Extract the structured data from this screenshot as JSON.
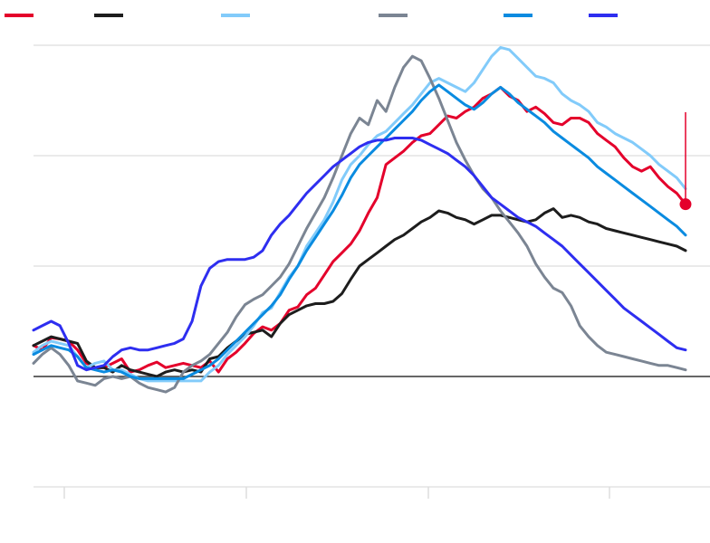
{
  "chart_data": {
    "type": "line",
    "title": "",
    "xlabel": "",
    "ylabel": "",
    "x": [
      0,
      1,
      2,
      3,
      4,
      5,
      6,
      7,
      8,
      9,
      10,
      11,
      12,
      13,
      14,
      15,
      16,
      17,
      18,
      19,
      20,
      21,
      22,
      23,
      24,
      25,
      26,
      27,
      28,
      29,
      30,
      31,
      32,
      33,
      34,
      35,
      36,
      37,
      38,
      39,
      40,
      41,
      42,
      43,
      44,
      45,
      46,
      47,
      48,
      49,
      50,
      51,
      52,
      53,
      54,
      55,
      56,
      57,
      58,
      59,
      60,
      61,
      62,
      63,
      64,
      65,
      66,
      67,
      68,
      69,
      70,
      71,
      72,
      73,
      74
    ],
    "xlim": [
      0,
      74
    ],
    "ylim": [
      -1,
      3
    ],
    "grid": true,
    "legend_position": "top-left",
    "marker_point": {
      "series": 0,
      "index": 74
    },
    "series": [
      {
        "color": "#e4002b",
        "values": [
          0.28,
          0.24,
          0.35,
          0.34,
          0.32,
          0.24,
          0.12,
          0.08,
          0.08,
          0.12,
          0.16,
          0.04,
          0.06,
          0.1,
          0.13,
          0.08,
          0.1,
          0.12,
          0.1,
          0.08,
          0.14,
          0.04,
          0.16,
          0.22,
          0.3,
          0.39,
          0.45,
          0.42,
          0.48,
          0.6,
          0.63,
          0.74,
          0.8,
          0.92,
          1.04,
          1.12,
          1.2,
          1.32,
          1.48,
          1.62,
          1.92,
          1.98,
          2.04,
          2.12,
          2.18,
          2.2,
          2.28,
          2.36,
          2.34,
          2.4,
          2.44,
          2.52,
          2.56,
          2.62,
          2.54,
          2.5,
          2.4,
          2.44,
          2.38,
          2.3,
          2.28,
          2.34,
          2.34,
          2.3,
          2.2,
          2.14,
          2.08,
          1.98,
          1.9,
          1.86,
          1.9,
          1.8,
          1.72,
          1.66,
          1.56
        ]
      },
      {
        "color": "#1d1d1d",
        "values": [
          0.28,
          0.32,
          0.36,
          0.34,
          0.32,
          0.3,
          0.14,
          0.08,
          0.08,
          0.04,
          0.1,
          0.06,
          0.04,
          0.02,
          0.0,
          0.04,
          0.06,
          0.04,
          0.06,
          0.04,
          0.16,
          0.18,
          0.26,
          0.32,
          0.38,
          0.4,
          0.42,
          0.36,
          0.48,
          0.56,
          0.6,
          0.64,
          0.66,
          0.66,
          0.68,
          0.75,
          0.88,
          1.0,
          1.06,
          1.12,
          1.18,
          1.24,
          1.28,
          1.34,
          1.4,
          1.44,
          1.5,
          1.48,
          1.44,
          1.42,
          1.38,
          1.42,
          1.46,
          1.46,
          1.44,
          1.42,
          1.4,
          1.42,
          1.48,
          1.52,
          1.44,
          1.46,
          1.44,
          1.4,
          1.38,
          1.34,
          1.32,
          1.3,
          1.28,
          1.26,
          1.24,
          1.22,
          1.2,
          1.18,
          1.14
        ]
      },
      {
        "color": "#82cbfa",
        "values": [
          0.22,
          0.28,
          0.32,
          0.3,
          0.28,
          0.18,
          0.08,
          0.12,
          0.14,
          0.06,
          0.06,
          0.02,
          -0.02,
          -0.04,
          -0.04,
          -0.04,
          -0.04,
          -0.04,
          -0.04,
          -0.04,
          0.04,
          0.1,
          0.2,
          0.28,
          0.36,
          0.46,
          0.58,
          0.62,
          0.76,
          0.9,
          1.0,
          1.18,
          1.3,
          1.42,
          1.58,
          1.78,
          1.92,
          2.0,
          2.1,
          2.18,
          2.22,
          2.3,
          2.38,
          2.46,
          2.56,
          2.66,
          2.7,
          2.66,
          2.62,
          2.58,
          2.66,
          2.78,
          2.9,
          2.98,
          2.96,
          2.88,
          2.8,
          2.72,
          2.7,
          2.66,
          2.56,
          2.5,
          2.46,
          2.4,
          2.3,
          2.26,
          2.2,
          2.16,
          2.12,
          2.06,
          2.0,
          1.92,
          1.86,
          1.8,
          1.7
        ]
      },
      {
        "color": "#7b8593",
        "values": [
          0.12,
          0.2,
          0.26,
          0.2,
          0.1,
          -0.04,
          -0.06,
          -0.08,
          -0.02,
          0.0,
          -0.02,
          0.0,
          -0.06,
          -0.1,
          -0.12,
          -0.14,
          -0.1,
          0.04,
          0.1,
          0.14,
          0.2,
          0.3,
          0.4,
          0.54,
          0.65,
          0.7,
          0.74,
          0.82,
          0.9,
          1.02,
          1.18,
          1.34,
          1.48,
          1.62,
          1.8,
          2.0,
          2.2,
          2.34,
          2.28,
          2.5,
          2.4,
          2.62,
          2.8,
          2.9,
          2.86,
          2.7,
          2.52,
          2.32,
          2.12,
          1.96,
          1.82,
          1.7,
          1.62,
          1.5,
          1.4,
          1.3,
          1.18,
          1.02,
          0.9,
          0.8,
          0.76,
          0.64,
          0.46,
          0.36,
          0.28,
          0.22,
          0.2,
          0.18,
          0.16,
          0.14,
          0.12,
          0.1,
          0.1,
          0.08,
          0.06
        ]
      },
      {
        "color": "#0a8be0",
        "values": [
          0.2,
          0.24,
          0.28,
          0.26,
          0.24,
          0.18,
          0.08,
          0.06,
          0.04,
          0.06,
          0.04,
          0.0,
          -0.02,
          -0.02,
          -0.02,
          -0.02,
          -0.02,
          -0.02,
          0.02,
          0.06,
          0.1,
          0.16,
          0.24,
          0.32,
          0.4,
          0.48,
          0.56,
          0.64,
          0.74,
          0.88,
          1.0,
          1.14,
          1.26,
          1.38,
          1.5,
          1.64,
          1.8,
          1.92,
          2.0,
          2.08,
          2.16,
          2.24,
          2.32,
          2.4,
          2.5,
          2.58,
          2.64,
          2.58,
          2.52,
          2.46,
          2.42,
          2.48,
          2.56,
          2.62,
          2.56,
          2.48,
          2.42,
          2.36,
          2.3,
          2.22,
          2.16,
          2.1,
          2.04,
          1.98,
          1.9,
          1.84,
          1.78,
          1.72,
          1.66,
          1.6,
          1.54,
          1.48,
          1.42,
          1.36,
          1.28
        ]
      },
      {
        "color": "#2e2ef0",
        "values": [
          0.42,
          0.46,
          0.5,
          0.46,
          0.3,
          0.1,
          0.06,
          0.08,
          0.1,
          0.18,
          0.24,
          0.26,
          0.24,
          0.24,
          0.26,
          0.28,
          0.3,
          0.34,
          0.5,
          0.82,
          0.98,
          1.04,
          1.06,
          1.06,
          1.06,
          1.08,
          1.14,
          1.28,
          1.38,
          1.46,
          1.56,
          1.66,
          1.74,
          1.82,
          1.9,
          1.96,
          2.02,
          2.08,
          2.12,
          2.14,
          2.14,
          2.16,
          2.16,
          2.16,
          2.14,
          2.1,
          2.06,
          2.02,
          1.96,
          1.9,
          1.82,
          1.72,
          1.62,
          1.56,
          1.5,
          1.44,
          1.4,
          1.36,
          1.3,
          1.24,
          1.18,
          1.1,
          1.02,
          0.94,
          0.86,
          0.78,
          0.7,
          0.62,
          0.56,
          0.5,
          0.44,
          0.38,
          0.32,
          0.26,
          0.24
        ]
      }
    ]
  }
}
